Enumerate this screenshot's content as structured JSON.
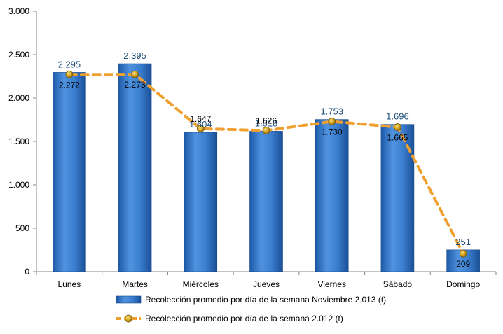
{
  "chart_data": {
    "type": "bar",
    "categories": [
      "Lunes",
      "Martes",
      "Miércoles",
      "Jueves",
      "Viernes",
      "Sábado",
      "Domingo"
    ],
    "series": [
      {
        "name": "Recolección promedio por día de la semana Noviembre 2.013 (t)",
        "type": "bar",
        "values": [
          2295,
          2395,
          1604,
          1618,
          1753,
          1696,
          251
        ],
        "labels": [
          "2.295",
          "2.395",
          "1.604",
          "1.618",
          "1.753",
          "1.696",
          "251"
        ],
        "color": "#2e75c8"
      },
      {
        "name": "Recolección promedio por día de la semana 2.012 (t)",
        "type": "line",
        "values": [
          2272,
          2273,
          1647,
          1626,
          1730,
          1665,
          209
        ],
        "labels": [
          "2.272",
          "2.273",
          "1.647",
          "1.626",
          "1.730",
          "1.665",
          "209"
        ],
        "color": "#f0a030",
        "marker_color": "#d4a017"
      }
    ],
    "y_ticks": [
      0,
      500,
      1000,
      1500,
      2000,
      2500,
      3000
    ],
    "y_tick_labels": [
      "0",
      "500",
      "1.000",
      "1.500",
      "2.000",
      "2.500",
      "3.000"
    ],
    "ylim": [
      0,
      3000
    ],
    "grid": false,
    "legend": "bottom"
  }
}
